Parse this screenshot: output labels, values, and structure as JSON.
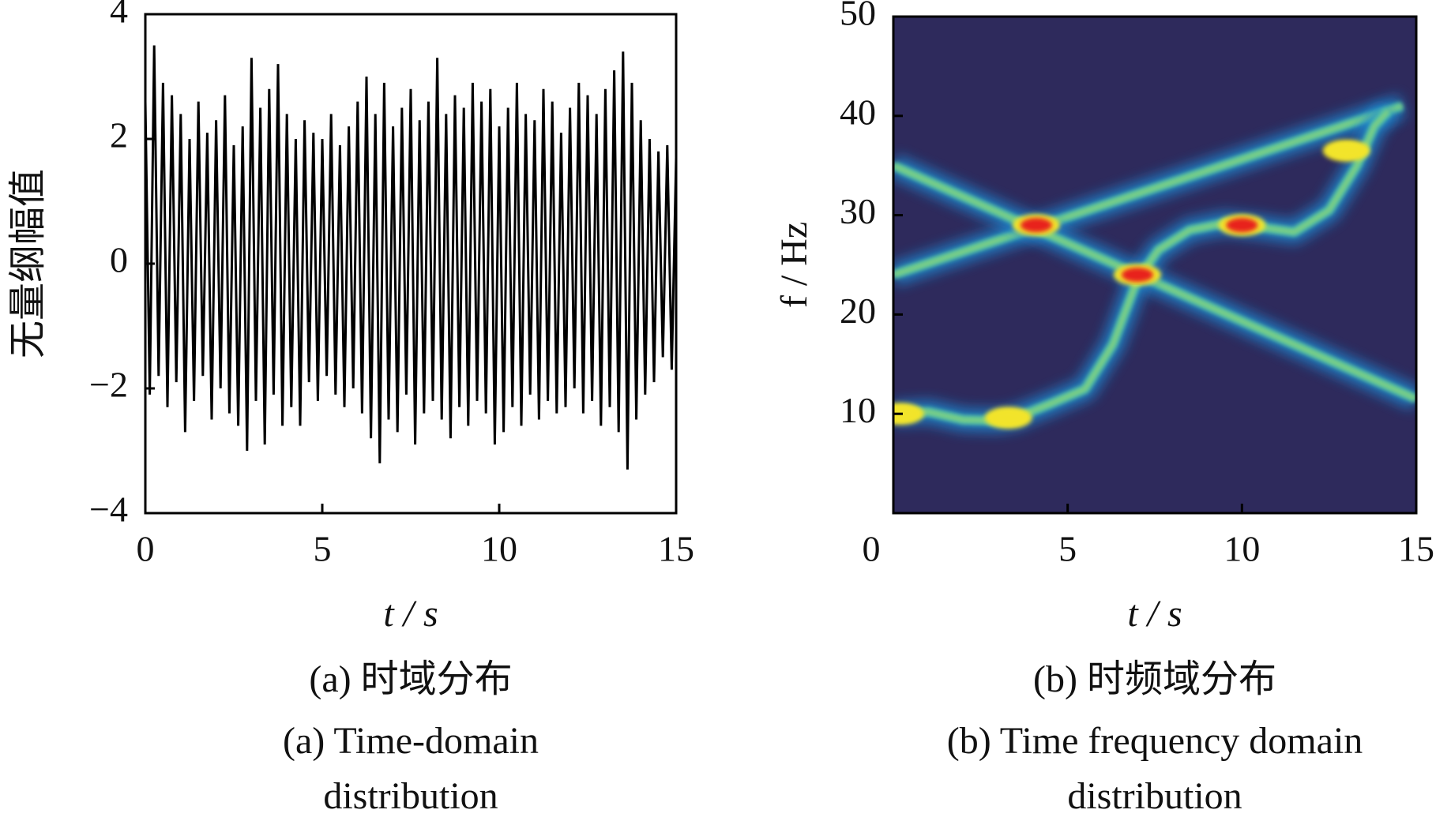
{
  "chart_data": [
    {
      "type": "line",
      "ylabel": "无量纲幅值",
      "xlabel": "t / s",
      "caption_cn": "(a)  时域分布",
      "caption_en_1": "(a)  Time-domain",
      "caption_en_2": "distribution",
      "xlim": [
        0,
        15
      ],
      "ylim": [
        -4,
        4
      ],
      "xticks": [
        0,
        5,
        10,
        15
      ],
      "yticks": [
        {
          "value": -4,
          "label": "−4"
        },
        {
          "value": -2,
          "label": "−2"
        },
        0,
        2,
        4
      ],
      "series": [
        {
          "color": "#000000",
          "x": [
            0,
            0.125,
            0.25,
            0.375,
            0.5,
            0.625,
            0.75,
            0.875,
            1,
            1.125,
            1.25,
            1.375,
            1.5,
            1.625,
            1.75,
            1.875,
            2,
            2.125,
            2.25,
            2.375,
            2.5,
            2.625,
            2.75,
            2.875,
            3,
            3.125,
            3.25,
            3.375,
            3.5,
            3.625,
            3.75,
            3.875,
            4,
            4.125,
            4.25,
            4.375,
            4.5,
            4.625,
            4.75,
            4.875,
            5,
            5.125,
            5.25,
            5.375,
            5.5,
            5.625,
            5.75,
            5.875,
            6,
            6.125,
            6.25,
            6.375,
            6.5,
            6.625,
            6.75,
            6.875,
            7,
            7.125,
            7.25,
            7.375,
            7.5,
            7.625,
            7.75,
            7.875,
            8,
            8.125,
            8.25,
            8.375,
            8.5,
            8.625,
            8.75,
            8.875,
            9,
            9.125,
            9.25,
            9.375,
            9.5,
            9.625,
            9.75,
            9.875,
            10,
            10.125,
            10.25,
            10.375,
            10.5,
            10.625,
            10.75,
            10.875,
            11,
            11.125,
            11.25,
            11.375,
            11.5,
            11.625,
            11.75,
            11.875,
            12,
            12.125,
            12.25,
            12.375,
            12.5,
            12.625,
            12.75,
            12.875,
            13,
            13.125,
            13.25,
            13.375,
            13.5,
            13.625,
            13.75,
            13.875,
            14,
            14.125,
            14.25,
            14.375,
            14.5,
            14.625,
            14.75,
            14.875,
            15
          ],
          "values": [
            2.6,
            -2.1,
            3.5,
            -1.8,
            2.9,
            -2.3,
            2.7,
            -1.9,
            2.4,
            -2.7,
            2.0,
            -2.2,
            2.6,
            -1.8,
            2.1,
            -2.5,
            2.3,
            -2.0,
            2.7,
            -2.4,
            1.9,
            -2.6,
            2.2,
            -3.0,
            3.3,
            -2.2,
            2.5,
            -2.9,
            2.8,
            -2.1,
            3.2,
            -2.6,
            2.4,
            -2.3,
            2.0,
            -2.6,
            2.3,
            -1.9,
            2.1,
            -2.2,
            2.0,
            -1.8,
            2.4,
            -2.1,
            1.9,
            -2.3,
            2.2,
            -2.0,
            2.6,
            -2.4,
            3.0,
            -2.8,
            2.4,
            -3.2,
            2.9,
            -2.5,
            2.2,
            -2.7,
            2.5,
            -2.1,
            2.8,
            -2.9,
            2.3,
            -2.4,
            2.6,
            -2.2,
            3.3,
            -2.5,
            2.4,
            -2.8,
            2.7,
            -2.3,
            2.5,
            -2.6,
            2.9,
            -2.2,
            2.6,
            -2.4,
            2.8,
            -2.9,
            2.2,
            -2.7,
            2.5,
            -2.3,
            2.9,
            -2.6,
            2.4,
            -2.1,
            2.3,
            -2.5,
            2.8,
            -2.2,
            2.6,
            -2.4,
            2.1,
            -2.3,
            2.5,
            -2.0,
            2.9,
            -2.4,
            2.7,
            -2.2,
            2.4,
            -2.6,
            2.8,
            -2.3,
            3.1,
            -2.7,
            3.4,
            -3.3,
            2.9,
            -2.5,
            2.3,
            -2.1,
            2.0,
            -1.9,
            1.8,
            -1.5,
            1.9,
            -1.7,
            1.7
          ]
        }
      ]
    },
    {
      "type": "spectrogram",
      "ylabel": "f / Hz",
      "xlabel": "t / s",
      "caption_cn": "(b)  时频域分布",
      "caption_en_1": "(b)  Time frequency domain",
      "caption_en_2": "distribution",
      "background": "#2e2a5c",
      "xlim": [
        0,
        15
      ],
      "ylim": [
        0,
        50
      ],
      "xticks": [
        0,
        5,
        10,
        15
      ],
      "yticks": [
        10,
        20,
        30,
        40,
        50
      ],
      "series": [
        {
          "color": "#4fc3a8",
          "x": [
            0,
            14.6
          ],
          "values": [
            24,
            41
          ]
        },
        {
          "color": "#4fc3a8",
          "x": [
            0,
            15
          ],
          "values": [
            35,
            11.5
          ]
        },
        {
          "color": "#4fc3a8",
          "x": [
            0,
            1,
            2,
            3,
            3.5,
            4.5,
            5.5,
            6.3,
            7,
            7.6,
            8.5,
            9.5,
            10.5,
            11.5,
            12.5,
            13.3,
            13.8,
            14.2
          ],
          "values": [
            10,
            10.2,
            9.4,
            9.3,
            9.6,
            11,
            12.5,
            17,
            23.5,
            26.5,
            28.5,
            29.2,
            28.8,
            28.3,
            30.5,
            35,
            39,
            40.5
          ]
        }
      ],
      "hotspots": [
        {
          "color": "#e8201a",
          "x": [
            4.1,
            7.0,
            10.0
          ],
          "values": [
            29,
            24,
            29
          ]
        },
        {
          "color": "#f2e42a",
          "x": [
            3.3,
            13.0,
            0.2
          ],
          "values": [
            9.6,
            36.5,
            10
          ]
        }
      ]
    }
  ]
}
